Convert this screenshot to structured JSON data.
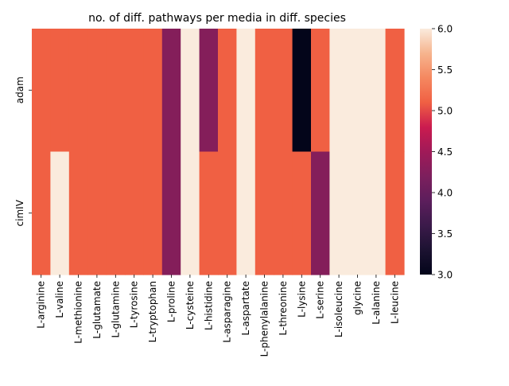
{
  "chart_data": {
    "type": "heatmap",
    "title": "no. of diff. pathways per media in diff. species",
    "xlabel": "",
    "ylabel": "",
    "rows": [
      "adam",
      "cimIV"
    ],
    "columns": [
      "L-arginine",
      "L-valine",
      "L-methionine",
      "L-glutamate",
      "L-glutamine",
      "L-tyrosine",
      "L-tryptophan",
      "L-proline",
      "L-cysteine",
      "L-histidine",
      "L-asparagine",
      "L-aspartate",
      "L-phenylalanine",
      "L-threonine",
      "L-lysine",
      "L-serine",
      "L-isoleucine",
      "glycine",
      "L-alanine",
      "L-leucine"
    ],
    "values": [
      [
        5,
        5,
        5,
        5,
        5,
        5,
        5,
        4,
        6,
        4,
        5,
        6,
        5,
        5,
        3,
        5,
        6,
        6,
        6,
        5
      ],
      [
        5,
        6,
        5,
        5,
        5,
        5,
        5,
        4,
        6,
        5,
        5,
        6,
        5,
        5,
        5,
        4,
        6,
        6,
        6,
        5
      ]
    ],
    "colorbar": {
      "range": [
        3.0,
        6.0
      ],
      "ticks": [
        "3.0",
        "3.5",
        "4.0",
        "4.5",
        "5.0",
        "5.5",
        "6.0"
      ],
      "palette": "rocket",
      "value_colors": {
        "3": "#03051a",
        "4": "#841e5a",
        "5": "#f06043",
        "6": "#faebdd"
      }
    },
    "grid": false,
    "legend": "colorbar-right"
  }
}
